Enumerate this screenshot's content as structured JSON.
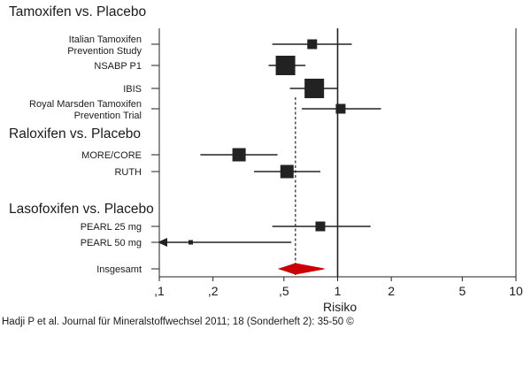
{
  "chart_data": {
    "type": "forest",
    "x_scale": "log",
    "xlim": [
      0.1,
      10
    ],
    "xlabel": "Risiko",
    "x_ticks": [
      {
        "value": 0.1,
        "label": ",1"
      },
      {
        "value": 0.2,
        "label": ",2"
      },
      {
        "value": 0.5,
        "label": ",5"
      },
      {
        "value": 1,
        "label": "1"
      },
      {
        "value": 2,
        "label": "2"
      },
      {
        "value": 5,
        "label": "5"
      },
      {
        "value": 10,
        "label": "10"
      }
    ],
    "reference_value": 1,
    "pooled_reference_value": 0.58,
    "groups": [
      {
        "title": "Tamoxifen vs. Placebo",
        "studies": [
          {
            "label_lines": [
              "Italian Tamoxifen",
              "Prevention Study"
            ],
            "estimate": 0.72,
            "ci": [
              0.43,
              1.2
            ],
            "weight": "small"
          },
          {
            "label_lines": [
              "NSABP P1"
            ],
            "estimate": 0.51,
            "ci": [
              0.41,
              0.66
            ],
            "weight": "large"
          },
          {
            "label_lines": [
              "IBIS"
            ],
            "estimate": 0.74,
            "ci": [
              0.54,
              1.0
            ],
            "weight": "large"
          },
          {
            "label_lines": [
              "Royal Marsden Tamoxifen",
              "Prevention Trial"
            ],
            "estimate": 1.04,
            "ci": [
              0.63,
              1.75
            ],
            "weight": "small"
          }
        ]
      },
      {
        "title": "Raloxifen vs. Placebo",
        "studies": [
          {
            "label_lines": [
              "MORE/CORE"
            ],
            "estimate": 0.28,
            "ci": [
              0.17,
              0.46
            ],
            "weight": "medium"
          },
          {
            "label_lines": [
              "RUTH"
            ],
            "estimate": 0.52,
            "ci": [
              0.34,
              0.8
            ],
            "weight": "medium"
          }
        ]
      },
      {
        "title": "Lasofoxifen vs. Placebo",
        "studies": [
          {
            "label_lines": [
              "PEARL 25 mg"
            ],
            "estimate": 0.8,
            "ci": [
              0.43,
              1.53
            ],
            "weight": "small"
          },
          {
            "label_lines": [
              "PEARL 50 mg"
            ],
            "estimate": 0.15,
            "ci": [
              0.1,
              0.55
            ],
            "weight": "tiny",
            "lower_truncated": true
          }
        ]
      }
    ],
    "overall": {
      "label": "Insgesamt",
      "estimate": 0.58,
      "ci": [
        0.47,
        0.84
      ],
      "color": "#cc0000"
    }
  },
  "citation": "Hadji P et al. Journal für Mineralstoffwechsel 2011; 18 (Sonderheft 2): 35-50 ©"
}
